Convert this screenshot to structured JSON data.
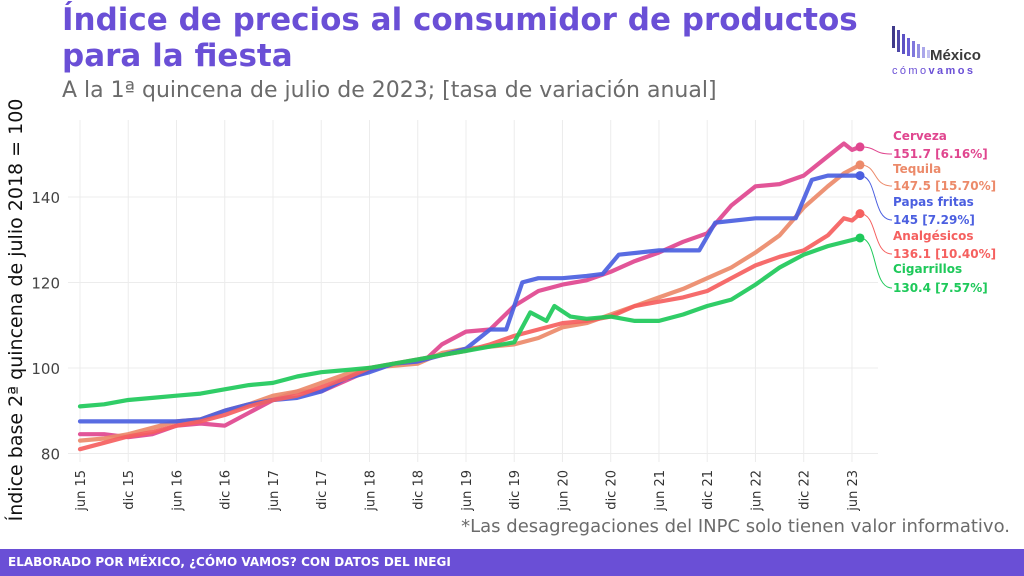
{
  "header": {
    "title": "Índice de precios al consumidor de productos para la fiesta",
    "subtitle": "A la 1ª quincena de julio de 2023; [tasa de variación anual]"
  },
  "logo": {
    "name": "México",
    "sub_light": "cómo",
    "sub_bold": "vamos"
  },
  "footnote": "*Las desagregaciones del INPC solo tienen valor informativo.",
  "footer": {
    "text": "ELABORADO POR MÉXICO, ¿CÓMO VAMOS? CON DATOS DEL INEGI"
  },
  "colors": {
    "brand": "#6a4fd6",
    "cerveza": "#e0468f",
    "tequila": "#ec8a6a",
    "papas": "#4b5fe0",
    "analgesicos": "#f5605f",
    "cigarrillos": "#1ec95a"
  },
  "chart_data": {
    "type": "line",
    "ylabel": "Índice base 2ª quincena de julio 2018 = 100",
    "xlabel": "",
    "ylim": [
      78,
      158
    ],
    "yticks": [
      80,
      100,
      120,
      140
    ],
    "x_range": [
      "2015-06",
      "2023-07"
    ],
    "xticks": [
      "jun 15",
      "dic 15",
      "jun 16",
      "dic 16",
      "jun 17",
      "dic 17",
      "jun 18",
      "dic 18",
      "jun 19",
      "dic 19",
      "jun 20",
      "dic 20",
      "jun 21",
      "dic 21",
      "jun 22",
      "dic 22",
      "jun 23"
    ],
    "grid": true,
    "series": [
      {
        "name": "Cerveza",
        "label": "151.7 [6.16%]",
        "color_key": "cerveza",
        "points": [
          [
            "2015-06",
            84.5
          ],
          [
            "2015-09",
            84.5
          ],
          [
            "2015-12",
            83.8
          ],
          [
            "2016-03",
            84.5
          ],
          [
            "2016-06",
            86.5
          ],
          [
            "2016-09",
            87
          ],
          [
            "2016-12",
            86.5
          ],
          [
            "2017-03",
            89.5
          ],
          [
            "2017-06",
            92.5
          ],
          [
            "2017-09",
            94.5
          ],
          [
            "2017-12",
            94.5
          ],
          [
            "2018-03",
            97
          ],
          [
            "2018-06",
            99.5
          ],
          [
            "2018-09",
            101
          ],
          [
            "2018-12",
            101.5
          ],
          [
            "2019-01",
            102
          ],
          [
            "2019-03",
            105.5
          ],
          [
            "2019-06",
            108.5
          ],
          [
            "2019-09",
            109
          ],
          [
            "2019-12",
            114.5
          ],
          [
            "2020-03",
            118
          ],
          [
            "2020-06",
            119.5
          ],
          [
            "2020-09",
            120.5
          ],
          [
            "2020-12",
            122.5
          ],
          [
            "2021-03",
            125
          ],
          [
            "2021-06",
            127
          ],
          [
            "2021-09",
            129.5
          ],
          [
            "2021-12",
            131.5
          ],
          [
            "2022-03",
            138
          ],
          [
            "2022-06",
            142.5
          ],
          [
            "2022-09",
            143
          ],
          [
            "2022-12",
            145
          ],
          [
            "2023-03",
            149.5
          ],
          [
            "2023-05",
            152.5
          ],
          [
            "2023-06",
            151
          ],
          [
            "2023-07",
            151.7
          ]
        ]
      },
      {
        "name": "Tequila",
        "label": "147.5 [15.70%]",
        "color_key": "tequila",
        "points": [
          [
            "2015-06",
            83
          ],
          [
            "2015-09",
            83.5
          ],
          [
            "2015-12",
            84.5
          ],
          [
            "2016-03",
            86
          ],
          [
            "2016-06",
            87.5
          ],
          [
            "2016-09",
            88
          ],
          [
            "2016-12",
            90
          ],
          [
            "2017-03",
            91.5
          ],
          [
            "2017-06",
            93.5
          ],
          [
            "2017-09",
            94.5
          ],
          [
            "2017-12",
            96.5
          ],
          [
            "2018-03",
            98.5
          ],
          [
            "2018-06",
            100
          ],
          [
            "2018-09",
            100.5
          ],
          [
            "2018-12",
            101
          ],
          [
            "2019-03",
            103.5
          ],
          [
            "2019-06",
            104.5
          ],
          [
            "2019-09",
            105
          ],
          [
            "2019-12",
            105.5
          ],
          [
            "2020-03",
            107
          ],
          [
            "2020-06",
            109.5
          ],
          [
            "2020-09",
            110.5
          ],
          [
            "2020-12",
            112.5
          ],
          [
            "2021-03",
            114.5
          ],
          [
            "2021-06",
            116.5
          ],
          [
            "2021-09",
            118.5
          ],
          [
            "2021-12",
            121
          ],
          [
            "2022-03",
            123.5
          ],
          [
            "2022-06",
            127
          ],
          [
            "2022-09",
            131
          ],
          [
            "2022-12",
            137.5
          ],
          [
            "2023-03",
            142.5
          ],
          [
            "2023-05",
            145.5
          ],
          [
            "2023-07",
            147.5
          ]
        ]
      },
      {
        "name": "Papas fritas",
        "label": "145 [7.29%]",
        "color_key": "papas",
        "points": [
          [
            "2015-06",
            87.5
          ],
          [
            "2015-12",
            87.5
          ],
          [
            "2016-06",
            87.5
          ],
          [
            "2016-09",
            88
          ],
          [
            "2016-12",
            90
          ],
          [
            "2017-03",
            91.5
          ],
          [
            "2017-06",
            92.5
          ],
          [
            "2017-09",
            93
          ],
          [
            "2017-12",
            94.5
          ],
          [
            "2018-03",
            97.5
          ],
          [
            "2018-06",
            99
          ],
          [
            "2018-09",
            101
          ],
          [
            "2018-12",
            101.5
          ],
          [
            "2019-03",
            103
          ],
          [
            "2019-06",
            104.5
          ],
          [
            "2019-09",
            109
          ],
          [
            "2019-11",
            109
          ],
          [
            "2020-01",
            120
          ],
          [
            "2020-03",
            121
          ],
          [
            "2020-06",
            121
          ],
          [
            "2020-09",
            121.5
          ],
          [
            "2020-11",
            122
          ],
          [
            "2021-01",
            126.5
          ],
          [
            "2021-06",
            127.5
          ],
          [
            "2021-11",
            127.5
          ],
          [
            "2022-01",
            134
          ],
          [
            "2022-06",
            135
          ],
          [
            "2022-11",
            135
          ],
          [
            "2023-01",
            144
          ],
          [
            "2023-03",
            145
          ],
          [
            "2023-07",
            145
          ]
        ]
      },
      {
        "name": "Analgésicos",
        "label": "136.1 [10.40%]",
        "color_key": "analgesicos",
        "points": [
          [
            "2015-06",
            81
          ],
          [
            "2015-09",
            82.5
          ],
          [
            "2015-12",
            84
          ],
          [
            "2016-03",
            85
          ],
          [
            "2016-06",
            86.5
          ],
          [
            "2016-09",
            87.5
          ],
          [
            "2016-12",
            89
          ],
          [
            "2017-03",
            91
          ],
          [
            "2017-06",
            92.5
          ],
          [
            "2017-09",
            93.5
          ],
          [
            "2017-12",
            95.5
          ],
          [
            "2018-03",
            97.5
          ],
          [
            "2018-06",
            100
          ],
          [
            "2018-09",
            101
          ],
          [
            "2018-12",
            102
          ],
          [
            "2019-03",
            103
          ],
          [
            "2019-06",
            104
          ],
          [
            "2019-09",
            105.5
          ],
          [
            "2019-12",
            107.5
          ],
          [
            "2020-03",
            109
          ],
          [
            "2020-06",
            110.5
          ],
          [
            "2020-09",
            111
          ],
          [
            "2020-12",
            112
          ],
          [
            "2021-03",
            114.5
          ],
          [
            "2021-06",
            115.5
          ],
          [
            "2021-09",
            116.5
          ],
          [
            "2021-12",
            118
          ],
          [
            "2022-03",
            121
          ],
          [
            "2022-06",
            124
          ],
          [
            "2022-09",
            126
          ],
          [
            "2022-12",
            127.5
          ],
          [
            "2023-03",
            131
          ],
          [
            "2023-05",
            135
          ],
          [
            "2023-06",
            134.5
          ],
          [
            "2023-07",
            136.1
          ]
        ]
      },
      {
        "name": "Cigarrillos",
        "label": "130.4 [7.57%]",
        "color_key": "cigarrillos",
        "points": [
          [
            "2015-06",
            91
          ],
          [
            "2015-09",
            91.5
          ],
          [
            "2015-12",
            92.5
          ],
          [
            "2016-03",
            93
          ],
          [
            "2016-06",
            93.5
          ],
          [
            "2016-09",
            94
          ],
          [
            "2016-12",
            95
          ],
          [
            "2017-03",
            96
          ],
          [
            "2017-06",
            96.5
          ],
          [
            "2017-09",
            98
          ],
          [
            "2017-12",
            99
          ],
          [
            "2018-03",
            99.5
          ],
          [
            "2018-06",
            100
          ],
          [
            "2018-09",
            101
          ],
          [
            "2018-12",
            102
          ],
          [
            "2019-03",
            103
          ],
          [
            "2019-06",
            104
          ],
          [
            "2019-09",
            105
          ],
          [
            "2019-12",
            106
          ],
          [
            "2020-02",
            113
          ],
          [
            "2020-04",
            111
          ],
          [
            "2020-05",
            114.5
          ],
          [
            "2020-07",
            112
          ],
          [
            "2020-09",
            111.5
          ],
          [
            "2020-12",
            112
          ],
          [
            "2021-03",
            111
          ],
          [
            "2021-06",
            111
          ],
          [
            "2021-09",
            112.5
          ],
          [
            "2021-12",
            114.5
          ],
          [
            "2022-03",
            116
          ],
          [
            "2022-06",
            119.5
          ],
          [
            "2022-09",
            123.5
          ],
          [
            "2022-12",
            126.5
          ],
          [
            "2023-03",
            128.5
          ],
          [
            "2023-07",
            130.4
          ]
        ]
      }
    ]
  }
}
